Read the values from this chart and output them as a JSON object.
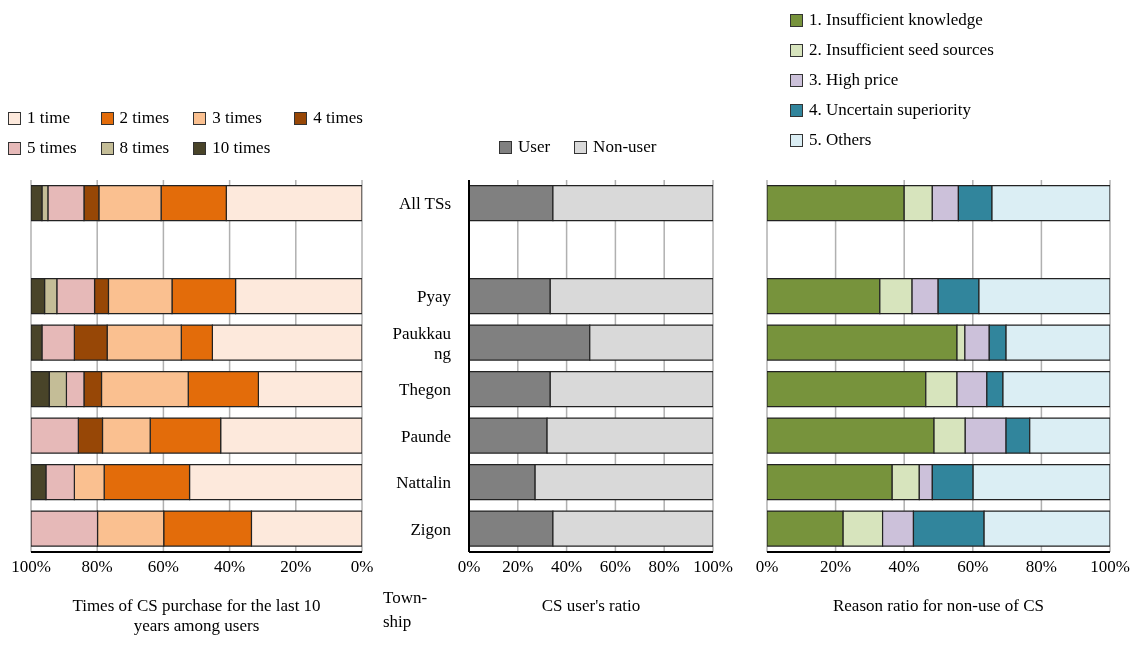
{
  "chart_data": [
    {
      "type": "bar",
      "orientation": "horizontal",
      "stacked": true,
      "xlabel": "Times of CS purchase for the last 10 years among users",
      "categories": [
        null,
        null,
        null,
        null,
        null,
        null,
        null,
        null
      ],
      "series": [
        {
          "name": "1 time",
          "color": "#fde9dc",
          "values": [
            41.0,
            null,
            38.2,
            45.2,
            31.3,
            42.7,
            52.1,
            33.4
          ]
        },
        {
          "name": "2 times",
          "color": "#e36c0a",
          "values": [
            19.7,
            null,
            19.2,
            9.4,
            21.2,
            21.3,
            25.8,
            26.5
          ]
        },
        {
          "name": "3 times",
          "color": "#fac090",
          "values": [
            18.8,
            null,
            19.2,
            22.4,
            26.2,
            14.4,
            9.0,
            20.0
          ]
        },
        {
          "name": "4 times",
          "color": "#974706",
          "values": [
            4.5,
            null,
            4.2,
            9.9,
            5.3,
            7.3,
            0,
            0
          ]
        },
        {
          "name": "5 times",
          "color": "#e6b9b8",
          "values": [
            10.9,
            null,
            11.4,
            9.8,
            5.3,
            14.3,
            8.6,
            20.1
          ]
        },
        {
          "name": "8 times",
          "color": "#c4bd97",
          "values": [
            1.8,
            null,
            3.7,
            0,
            5.2,
            0,
            0,
            0
          ]
        },
        {
          "name": "10 times",
          "color": "#494429",
          "values": [
            3.3,
            null,
            4.1,
            3.3,
            5.5,
            0,
            4.5,
            0
          ]
        }
      ],
      "xlim": [
        100,
        0
      ],
      "xticks": [
        {
          "value": 100,
          "label": "100%"
        },
        {
          "value": 80,
          "label": "80%"
        },
        {
          "value": 60,
          "label": "60%"
        },
        {
          "value": 40,
          "label": "40%"
        },
        {
          "value": 20,
          "label": "20%"
        },
        {
          "value": 0,
          "label": "0%"
        }
      ],
      "grid": "x",
      "legend": "top",
      "tick_labels": "x"
    },
    {
      "type": "bar",
      "orientation": "horizontal",
      "stacked": true,
      "xlabel": "CS user's ratio",
      "ylabel": "Town-ship",
      "categories": [
        "All TSs",
        null,
        "Pyay",
        "Paukkaung",
        "Thegon",
        "Paunde",
        "Nattalin",
        "Zigon"
      ],
      "series": [
        {
          "name": "User",
          "color": "#808080",
          "values": [
            34.4,
            null,
            33.3,
            49.5,
            33.3,
            32.0,
            27.1,
            34.4
          ]
        },
        {
          "name": "Non-user",
          "color": "#d9d9d9",
          "values": [
            65.6,
            null,
            66.7,
            50.5,
            66.7,
            68.0,
            72.9,
            65.6
          ]
        }
      ],
      "xlim": [
        0,
        100
      ],
      "xticks": [
        {
          "value": 0,
          "label": "0%"
        },
        {
          "value": 20,
          "label": "20%"
        },
        {
          "value": 40,
          "label": "40%"
        },
        {
          "value": 60,
          "label": "60%"
        },
        {
          "value": 80,
          "label": "80%"
        },
        {
          "value": 100,
          "label": "100%"
        }
      ],
      "grid": "x",
      "legend": "top"
    },
    {
      "type": "bar",
      "orientation": "horizontal",
      "stacked": true,
      "xlabel": "Reason ratio for non-use of CS",
      "categories": [
        null,
        null,
        null,
        null,
        null,
        null,
        null,
        null
      ],
      "series": [
        {
          "name": "1. Insufficient knowledge",
          "color": "#77933c",
          "values": [
            40.0,
            null,
            32.9,
            55.4,
            46.3,
            48.7,
            36.5,
            22.2
          ]
        },
        {
          "name": "2. Insufficient seed sources",
          "color": "#d7e4bd",
          "values": [
            8.2,
            null,
            9.4,
            2.3,
            9.1,
            9.1,
            7.9,
            11.5
          ]
        },
        {
          "name": "3. High price",
          "color": "#ccc1da",
          "values": [
            7.6,
            null,
            7.6,
            7.1,
            8.7,
            11.9,
            3.8,
            9.0
          ]
        },
        {
          "name": "4. Uncertain superiority",
          "color": "#31859c",
          "values": [
            9.8,
            null,
            11.9,
            4.9,
            4.7,
            6.9,
            11.9,
            20.6
          ]
        },
        {
          "name": "5. Others",
          "color": "#dbeef4",
          "values": [
            34.4,
            null,
            38.2,
            30.3,
            31.2,
            23.4,
            39.9,
            36.7
          ]
        }
      ],
      "xlim": [
        0,
        100
      ],
      "xticks": [
        {
          "value": 0,
          "label": "0%"
        },
        {
          "value": 20,
          "label": "20%"
        },
        {
          "value": 40,
          "label": "40%"
        },
        {
          "value": 60,
          "label": "60%"
        },
        {
          "value": 80,
          "label": "80%"
        },
        {
          "value": 100,
          "label": "100%"
        }
      ],
      "grid": "x",
      "legend": "top",
      "tick_labels": "x"
    }
  ]
}
